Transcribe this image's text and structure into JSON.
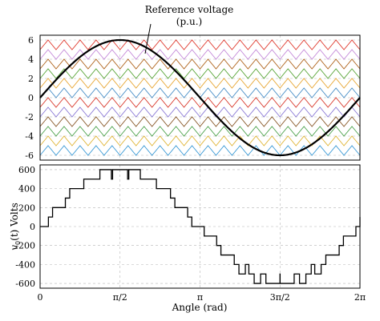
{
  "chart_data": [
    {
      "type": "line",
      "annotation": {
        "text_line1": "Reference voltage",
        "text_line2": "(p.u.)"
      },
      "ylim": [
        -6.5,
        6.5
      ],
      "xlim": [
        0,
        6.2832
      ],
      "y_ticks": [
        "6",
        "4",
        "2",
        "0",
        "-2",
        "-4",
        "-6"
      ],
      "y_tick_values": [
        6,
        4,
        2,
        0,
        -2,
        -4,
        -6
      ],
      "grid": true,
      "reference": {
        "amplitude": 6,
        "function": "sine",
        "color": "#000000"
      },
      "carriers": {
        "count": 12,
        "periods_over_xrange": 20,
        "levels": [
          [
            5,
            6
          ],
          [
            4,
            5
          ],
          [
            3,
            4
          ],
          [
            2,
            3
          ],
          [
            1,
            2
          ],
          [
            0,
            1
          ],
          [
            -1,
            0
          ],
          [
            -2,
            -1
          ],
          [
            -3,
            -2
          ],
          [
            -4,
            -3
          ],
          [
            -5,
            -4
          ],
          [
            -6,
            -5
          ]
        ],
        "colors": [
          "#e03c31",
          "#c58bd9",
          "#b0651e",
          "#5aa63a",
          "#e8a735",
          "#4a8fc7",
          "#d93c2f",
          "#8c7bd6",
          "#8a5a2b",
          "#4fa34f",
          "#e0b63a",
          "#3d9bd6"
        ]
      }
    },
    {
      "type": "line",
      "ylabel_var": "v",
      "ylabel_sub": "0",
      "ylabel_rest": "(t) Volts",
      "xlabel": "Angle (rad)",
      "ylim": [
        -650,
        650
      ],
      "xlim": [
        0,
        6.2832
      ],
      "y_ticks": [
        "600",
        "400",
        "200",
        "0",
        "-200",
        "-400",
        "-600"
      ],
      "y_tick_values": [
        600,
        400,
        200,
        0,
        -200,
        -400,
        -600
      ],
      "x_ticks": [
        "0",
        "π/2",
        "π",
        "3π/2",
        "2π"
      ],
      "x_tick_values": [
        0,
        1.5708,
        3.1416,
        4.7124,
        6.2832
      ],
      "grid": true,
      "step_voltage_per_level": 100,
      "levels": 6,
      "series": [
        {
          "color": "#000000"
        }
      ]
    }
  ]
}
